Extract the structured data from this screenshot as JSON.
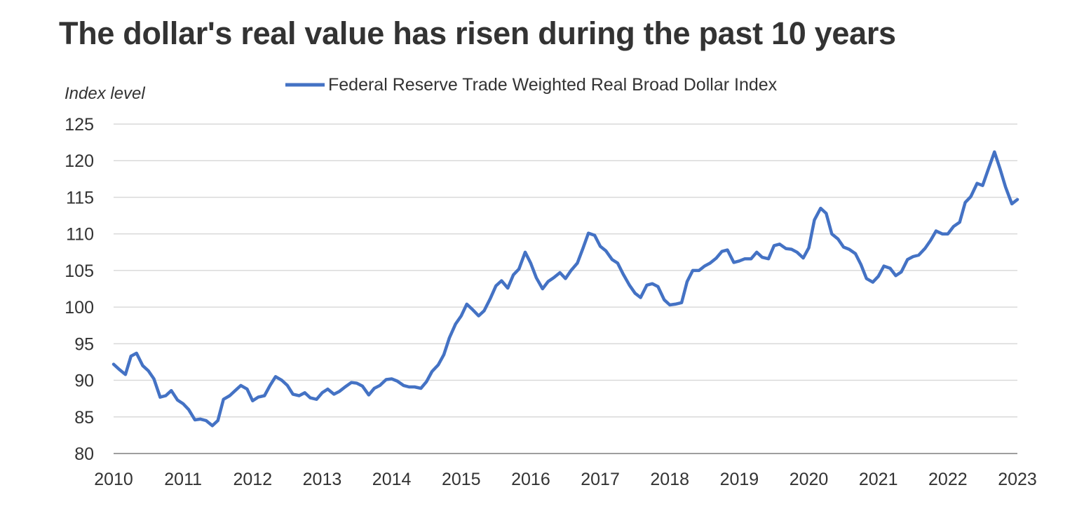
{
  "chart_data": {
    "type": "line",
    "title": "The dollar's real value has risen during the past 10 years",
    "ylabel": "Index level",
    "xlabel": "",
    "ylim": [
      80,
      125
    ],
    "yticks": [
      80,
      85,
      90,
      95,
      100,
      105,
      110,
      115,
      120,
      125
    ],
    "xlim": [
      2010,
      2023
    ],
    "xticks": [
      2010,
      2011,
      2012,
      2013,
      2014,
      2015,
      2016,
      2017,
      2018,
      2019,
      2020,
      2021,
      2022,
      2023
    ],
    "grid": true,
    "legend_position": "top-center",
    "colors": {
      "line": "#4472C4",
      "grid": "#D9D9D9",
      "axis": "#7F7F7F",
      "text": "#333333"
    },
    "series": [
      {
        "name": "Federal Reserve Trade Weighted Real Broad Dollar Index",
        "points": [
          [
            2010.0,
            92.2
          ],
          [
            2010.08,
            91.5
          ],
          [
            2010.17,
            90.8
          ],
          [
            2010.25,
            93.3
          ],
          [
            2010.33,
            93.7
          ],
          [
            2010.42,
            92.0
          ],
          [
            2010.5,
            91.3
          ],
          [
            2010.58,
            90.2
          ],
          [
            2010.67,
            87.7
          ],
          [
            2010.75,
            87.9
          ],
          [
            2010.83,
            88.6
          ],
          [
            2010.92,
            87.3
          ],
          [
            2011.0,
            86.8
          ],
          [
            2011.08,
            86.0
          ],
          [
            2011.17,
            84.6
          ],
          [
            2011.25,
            84.7
          ],
          [
            2011.33,
            84.5
          ],
          [
            2011.42,
            83.8
          ],
          [
            2011.5,
            84.5
          ],
          [
            2011.58,
            87.4
          ],
          [
            2011.67,
            87.9
          ],
          [
            2011.75,
            88.6
          ],
          [
            2011.83,
            89.3
          ],
          [
            2011.92,
            88.8
          ],
          [
            2012.0,
            87.2
          ],
          [
            2012.08,
            87.7
          ],
          [
            2012.17,
            87.9
          ],
          [
            2012.25,
            89.3
          ],
          [
            2012.33,
            90.5
          ],
          [
            2012.42,
            90.0
          ],
          [
            2012.5,
            89.3
          ],
          [
            2012.58,
            88.1
          ],
          [
            2012.67,
            87.9
          ],
          [
            2012.75,
            88.3
          ],
          [
            2012.83,
            87.6
          ],
          [
            2012.92,
            87.4
          ],
          [
            2013.0,
            88.3
          ],
          [
            2013.08,
            88.8
          ],
          [
            2013.17,
            88.1
          ],
          [
            2013.25,
            88.5
          ],
          [
            2013.33,
            89.1
          ],
          [
            2013.42,
            89.7
          ],
          [
            2013.5,
            89.6
          ],
          [
            2013.58,
            89.2
          ],
          [
            2013.67,
            88.0
          ],
          [
            2013.75,
            88.9
          ],
          [
            2013.83,
            89.3
          ],
          [
            2013.92,
            90.1
          ],
          [
            2014.0,
            90.2
          ],
          [
            2014.08,
            89.9
          ],
          [
            2014.17,
            89.3
          ],
          [
            2014.25,
            89.1
          ],
          [
            2014.33,
            89.1
          ],
          [
            2014.42,
            88.9
          ],
          [
            2014.5,
            89.8
          ],
          [
            2014.58,
            91.2
          ],
          [
            2014.67,
            92.1
          ],
          [
            2014.75,
            93.5
          ],
          [
            2014.83,
            95.8
          ],
          [
            2014.92,
            97.7
          ],
          [
            2015.0,
            98.8
          ],
          [
            2015.08,
            100.4
          ],
          [
            2015.17,
            99.6
          ],
          [
            2015.25,
            98.8
          ],
          [
            2015.33,
            99.5
          ],
          [
            2015.42,
            101.2
          ],
          [
            2015.5,
            102.9
          ],
          [
            2015.58,
            103.6
          ],
          [
            2015.67,
            102.6
          ],
          [
            2015.75,
            104.4
          ],
          [
            2015.83,
            105.2
          ],
          [
            2015.92,
            107.5
          ],
          [
            2016.0,
            106.0
          ],
          [
            2016.08,
            104.0
          ],
          [
            2016.17,
            102.5
          ],
          [
            2016.25,
            103.5
          ],
          [
            2016.33,
            104.0
          ],
          [
            2016.42,
            104.7
          ],
          [
            2016.5,
            103.9
          ],
          [
            2016.58,
            105.0
          ],
          [
            2016.67,
            106.0
          ],
          [
            2016.75,
            108.0
          ],
          [
            2016.83,
            110.1
          ],
          [
            2016.92,
            109.8
          ],
          [
            2017.0,
            108.3
          ],
          [
            2017.08,
            107.7
          ],
          [
            2017.17,
            106.5
          ],
          [
            2017.25,
            106.0
          ],
          [
            2017.33,
            104.5
          ],
          [
            2017.42,
            103.0
          ],
          [
            2017.5,
            101.9
          ],
          [
            2017.58,
            101.3
          ],
          [
            2017.67,
            103.0
          ],
          [
            2017.75,
            103.2
          ],
          [
            2017.83,
            102.8
          ],
          [
            2017.92,
            101.0
          ],
          [
            2018.0,
            100.3
          ],
          [
            2018.08,
            100.4
          ],
          [
            2018.17,
            100.6
          ],
          [
            2018.25,
            103.5
          ],
          [
            2018.33,
            105.0
          ],
          [
            2018.42,
            105.0
          ],
          [
            2018.5,
            105.6
          ],
          [
            2018.58,
            106.0
          ],
          [
            2018.67,
            106.7
          ],
          [
            2018.75,
            107.6
          ],
          [
            2018.83,
            107.8
          ],
          [
            2018.92,
            106.1
          ],
          [
            2019.0,
            106.3
          ],
          [
            2019.08,
            106.6
          ],
          [
            2019.17,
            106.6
          ],
          [
            2019.25,
            107.5
          ],
          [
            2019.33,
            106.8
          ],
          [
            2019.42,
            106.6
          ],
          [
            2019.5,
            108.4
          ],
          [
            2019.58,
            108.6
          ],
          [
            2019.67,
            108.0
          ],
          [
            2019.75,
            107.9
          ],
          [
            2019.83,
            107.5
          ],
          [
            2019.92,
            106.7
          ],
          [
            2020.0,
            108.1
          ],
          [
            2020.08,
            111.9
          ],
          [
            2020.17,
            113.5
          ],
          [
            2020.25,
            112.8
          ],
          [
            2020.33,
            110.0
          ],
          [
            2020.42,
            109.3
          ],
          [
            2020.5,
            108.2
          ],
          [
            2020.58,
            107.9
          ],
          [
            2020.67,
            107.3
          ],
          [
            2020.75,
            105.8
          ],
          [
            2020.83,
            103.9
          ],
          [
            2020.92,
            103.4
          ],
          [
            2021.0,
            104.2
          ],
          [
            2021.08,
            105.6
          ],
          [
            2021.17,
            105.3
          ],
          [
            2021.25,
            104.3
          ],
          [
            2021.33,
            104.8
          ],
          [
            2021.42,
            106.5
          ],
          [
            2021.5,
            106.9
          ],
          [
            2021.58,
            107.1
          ],
          [
            2021.67,
            108.0
          ],
          [
            2021.75,
            109.1
          ],
          [
            2021.83,
            110.4
          ],
          [
            2021.92,
            110.0
          ],
          [
            2022.0,
            110.0
          ],
          [
            2022.08,
            111.0
          ],
          [
            2022.17,
            111.6
          ],
          [
            2022.25,
            114.3
          ],
          [
            2022.33,
            115.1
          ],
          [
            2022.42,
            116.9
          ],
          [
            2022.5,
            116.6
          ],
          [
            2022.58,
            118.8
          ],
          [
            2022.67,
            121.2
          ],
          [
            2022.75,
            118.9
          ],
          [
            2022.83,
            116.4
          ],
          [
            2022.92,
            114.1
          ],
          [
            2023.0,
            114.7
          ]
        ]
      }
    ]
  }
}
